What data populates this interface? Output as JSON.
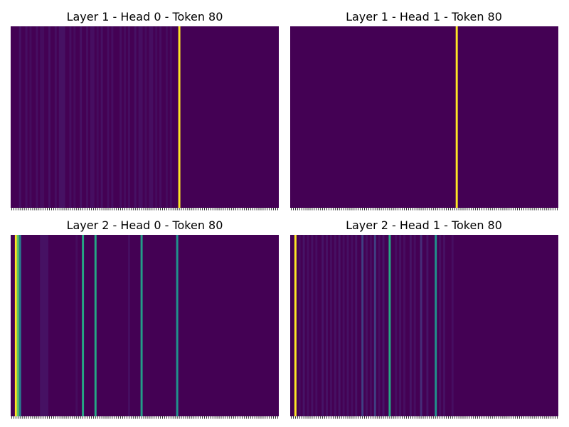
{
  "chart_data": [
    {
      "type": "heatmap",
      "title": "Layer 1 - Head 0 - Token 80",
      "n_tokens": 128,
      "xticklabels": "none",
      "yticklabels": "none",
      "colormap": "viridis",
      "background_value": 0.0,
      "weights": [
        {
          "x": 4,
          "w": 1,
          "v": 0.06
        },
        {
          "x": 7,
          "w": 1,
          "v": 0.05
        },
        {
          "x": 9,
          "w": 1,
          "v": 0.04
        },
        {
          "x": 12,
          "w": 1,
          "v": 0.05
        },
        {
          "x": 14,
          "w": 2,
          "v": 0.04
        },
        {
          "x": 18,
          "w": 1,
          "v": 0.06
        },
        {
          "x": 21,
          "w": 1,
          "v": 0.05
        },
        {
          "x": 23,
          "w": 3,
          "v": 0.06
        },
        {
          "x": 28,
          "w": 1,
          "v": 0.05
        },
        {
          "x": 30,
          "w": 1,
          "v": 0.04
        },
        {
          "x": 33,
          "w": 1,
          "v": 0.06
        },
        {
          "x": 36,
          "w": 1,
          "v": 0.05
        },
        {
          "x": 38,
          "w": 2,
          "v": 0.05
        },
        {
          "x": 41,
          "w": 1,
          "v": 0.04
        },
        {
          "x": 43,
          "w": 1,
          "v": 0.06
        },
        {
          "x": 46,
          "w": 1,
          "v": 0.05
        },
        {
          "x": 48,
          "w": 1,
          "v": 0.05
        },
        {
          "x": 52,
          "w": 1,
          "v": 0.05
        },
        {
          "x": 54,
          "w": 1,
          "v": 0.04
        },
        {
          "x": 56,
          "w": 1,
          "v": 0.05
        },
        {
          "x": 59,
          "w": 1,
          "v": 0.06
        },
        {
          "x": 61,
          "w": 2,
          "v": 0.05
        },
        {
          "x": 64,
          "w": 1,
          "v": 0.04
        },
        {
          "x": 66,
          "w": 2,
          "v": 0.05
        },
        {
          "x": 69,
          "w": 1,
          "v": 0.04
        },
        {
          "x": 71,
          "w": 1,
          "v": 0.05
        },
        {
          "x": 74,
          "w": 1,
          "v": 0.04
        },
        {
          "x": 76,
          "w": 1,
          "v": 0.05
        },
        {
          "x": 80,
          "w": 1,
          "v": 1.0
        }
      ]
    },
    {
      "type": "heatmap",
      "title": "Layer 1 - Head 1 - Token 80",
      "n_tokens": 128,
      "xticklabels": "none",
      "yticklabels": "none",
      "colormap": "viridis",
      "background_value": 0.0,
      "weights": [
        {
          "x": 79,
          "w": 1,
          "v": 1.0
        }
      ]
    },
    {
      "type": "heatmap",
      "title": "Layer 2 - Head 0 - Token 80",
      "n_tokens": 128,
      "xticklabels": "none",
      "yticklabels": "none",
      "colormap": "viridis",
      "background_value": 0.0,
      "weights": [
        {
          "x": 2,
          "w": 1,
          "v": 1.0
        },
        {
          "x": 3,
          "w": 1,
          "v": 0.75
        },
        {
          "x": 4,
          "w": 1,
          "v": 0.4
        },
        {
          "x": 14,
          "w": 4,
          "v": 0.06
        },
        {
          "x": 31,
          "w": 1,
          "v": 0.04
        },
        {
          "x": 34,
          "w": 1,
          "v": 0.6
        },
        {
          "x": 40,
          "w": 1,
          "v": 0.6
        },
        {
          "x": 56,
          "w": 1,
          "v": 0.05
        },
        {
          "x": 62,
          "w": 1,
          "v": 0.55
        },
        {
          "x": 79,
          "w": 1,
          "v": 0.5
        }
      ]
    },
    {
      "type": "heatmap",
      "title": "Layer 2 - Head 1 - Token 80",
      "n_tokens": 128,
      "xticklabels": "none",
      "yticklabels": "none",
      "colormap": "viridis",
      "background_value": 0.0,
      "weights": [
        {
          "x": 2,
          "w": 1,
          "v": 1.0
        },
        {
          "x": 4,
          "w": 1,
          "v": 0.04
        },
        {
          "x": 6,
          "w": 1,
          "v": 0.07
        },
        {
          "x": 8,
          "w": 1,
          "v": 0.05
        },
        {
          "x": 10,
          "w": 1,
          "v": 0.06
        },
        {
          "x": 12,
          "w": 1,
          "v": 0.05
        },
        {
          "x": 15,
          "w": 1,
          "v": 0.07
        },
        {
          "x": 17,
          "w": 1,
          "v": 0.06
        },
        {
          "x": 19,
          "w": 1,
          "v": 0.05
        },
        {
          "x": 21,
          "w": 1,
          "v": 0.06
        },
        {
          "x": 23,
          "w": 1,
          "v": 0.07
        },
        {
          "x": 25,
          "w": 1,
          "v": 0.05
        },
        {
          "x": 27,
          "w": 1,
          "v": 0.06
        },
        {
          "x": 29,
          "w": 1,
          "v": 0.05
        },
        {
          "x": 31,
          "w": 1,
          "v": 0.07
        },
        {
          "x": 34,
          "w": 1,
          "v": 0.2
        },
        {
          "x": 36,
          "w": 1,
          "v": 0.06
        },
        {
          "x": 38,
          "w": 1,
          "v": 0.05
        },
        {
          "x": 40,
          "w": 1,
          "v": 0.2
        },
        {
          "x": 42,
          "w": 1,
          "v": 0.05
        },
        {
          "x": 44,
          "w": 1,
          "v": 0.07
        },
        {
          "x": 47,
          "w": 1,
          "v": 0.6
        },
        {
          "x": 50,
          "w": 1,
          "v": 0.05
        },
        {
          "x": 52,
          "w": 1,
          "v": 0.06
        },
        {
          "x": 54,
          "w": 1,
          "v": 0.05
        },
        {
          "x": 57,
          "w": 1,
          "v": 0.07
        },
        {
          "x": 59,
          "w": 1,
          "v": 0.05
        },
        {
          "x": 62,
          "w": 1,
          "v": 0.15
        },
        {
          "x": 65,
          "w": 1,
          "v": 0.07
        },
        {
          "x": 69,
          "w": 1,
          "v": 0.5
        },
        {
          "x": 71,
          "w": 1,
          "v": 0.05
        },
        {
          "x": 73,
          "w": 1,
          "v": 0.06
        },
        {
          "x": 77,
          "w": 1,
          "v": 0.05
        }
      ]
    }
  ]
}
